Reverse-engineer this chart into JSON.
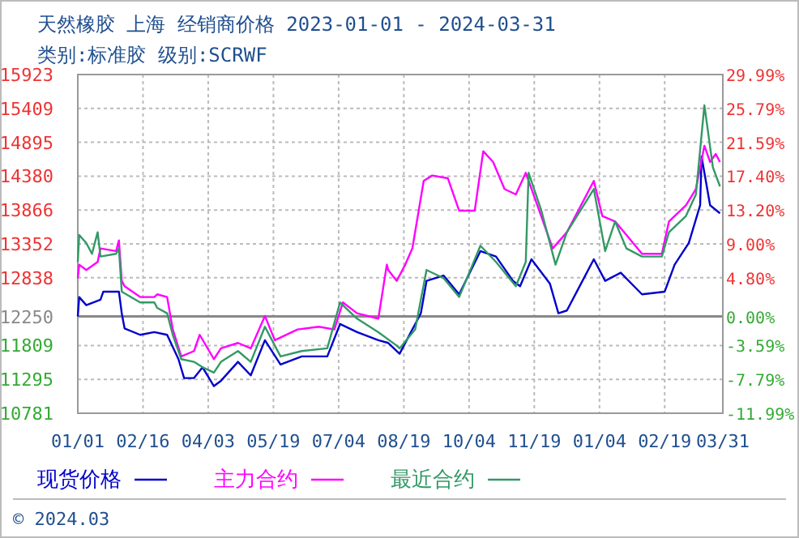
{
  "chart_data": {
    "type": "line",
    "title": "天然橡胶 上海 经销商价格 2023-01-01 - 2024-03-31",
    "subtitle": "类别:标准胶 级别:SCRWF",
    "xlim": [
      "2023-01-01",
      "2024-03-31"
    ],
    "xticks": [
      {
        "value": "2023-01-01",
        "label": "01/01"
      },
      {
        "value": "2023-02-16",
        "label": "02/16"
      },
      {
        "value": "2023-04-03",
        "label": "04/03"
      },
      {
        "value": "2023-05-19",
        "label": "05/19"
      },
      {
        "value": "2023-07-04",
        "label": "07/04"
      },
      {
        "value": "2023-08-19",
        "label": "08/19"
      },
      {
        "value": "2023-10-04",
        "label": "10/04"
      },
      {
        "value": "2023-11-19",
        "label": "11/19"
      },
      {
        "value": "2024-01-04",
        "label": "01/04"
      },
      {
        "value": "2024-02-19",
        "label": "02/19"
      },
      {
        "value": "2024-03-31",
        "label": "03/31"
      }
    ],
    "ylim": [
      10781,
      15923
    ],
    "yticks": [
      10781,
      11295,
      11809,
      12250,
      12838,
      13352,
      13866,
      14380,
      14895,
      15409,
      15923
    ],
    "y2lim": [
      -11.99,
      29.99
    ],
    "y2ticks": [
      {
        "value": -11.99,
        "label": "-11.99%"
      },
      {
        "value": -7.79,
        "label": "-7.79%"
      },
      {
        "value": -3.59,
        "label": "-3.59%"
      },
      {
        "value": 0,
        "label": "0.00%"
      },
      {
        "value": 4.8,
        "label": "4.80%"
      },
      {
        "value": 9.0,
        "label": "9.00%"
      },
      {
        "value": 13.2,
        "label": "13.20%"
      },
      {
        "value": 17.4,
        "label": "17.40%"
      },
      {
        "value": 21.59,
        "label": "21.59%"
      },
      {
        "value": 25.79,
        "label": "25.79%"
      },
      {
        "value": 29.99,
        "label": "29.99%"
      }
    ],
    "grid": true,
    "legend": "bottom",
    "ref_lines": [
      {
        "axis": "y",
        "value": 12250,
        "color": "#888888"
      }
    ],
    "annotations": [
      "© 2024.03"
    ],
    "series": [
      {
        "name": "现货价格",
        "color": "#0000cc",
        "x": [
          "2023-01-01",
          "2023-01-02",
          "2023-01-07",
          "2023-01-17",
          "2023-01-19",
          "2023-01-30",
          "2023-02-01",
          "2023-02-03",
          "2023-02-14",
          "2023-02-24",
          "2023-03-05",
          "2023-03-13",
          "2023-03-17",
          "2023-03-24",
          "2023-03-30",
          "2023-04-07",
          "2023-04-12",
          "2023-04-24",
          "2023-05-03",
          "2023-05-13",
          "2023-05-24",
          "2023-06-08",
          "2023-06-26",
          "2023-07-05",
          "2023-07-17",
          "2023-08-01",
          "2023-08-08",
          "2023-08-16",
          "2023-08-31",
          "2023-09-04",
          "2023-09-16",
          "2023-09-27",
          "2023-10-12",
          "2023-10-23",
          "2023-11-04",
          "2023-11-09",
          "2023-11-17",
          "2023-11-30",
          "2023-12-06",
          "2023-12-12",
          "2023-12-20",
          "2023-12-31",
          "2024-01-08",
          "2024-01-19",
          "2024-02-03",
          "2024-02-19",
          "2024-02-26",
          "2024-03-07",
          "2024-03-15",
          "2024-03-16",
          "2024-03-22",
          "2024-03-29"
        ],
        "values": [
          12250,
          12545,
          12422,
          12504,
          12627,
          12627,
          12299,
          12069,
          11971,
          12012,
          11971,
          11602,
          11315,
          11315,
          11479,
          11192,
          11274,
          11561,
          11356,
          11889,
          11520,
          11643,
          11643,
          12135,
          12012,
          11889,
          11848,
          11684,
          12299,
          12790,
          12872,
          12586,
          13242,
          13160,
          12790,
          12709,
          13119,
          12750,
          12299,
          12340,
          12668,
          13119,
          12790,
          12914,
          12586,
          12627,
          13037,
          13365,
          13939,
          14677,
          13939,
          13816
        ]
      },
      {
        "name": "主力合约",
        "color": "#ff00ff",
        "x": [
          "2023-01-01",
          "2023-01-02",
          "2023-01-07",
          "2023-01-15",
          "2023-01-17",
          "2023-01-28",
          "2023-01-30",
          "2023-02-01",
          "2023-02-03",
          "2023-02-14",
          "2023-02-24",
          "2023-02-26",
          "2023-03-05",
          "2023-03-09",
          "2023-03-15",
          "2023-03-24",
          "2023-03-28",
          "2023-04-07",
          "2023-04-12",
          "2023-04-24",
          "2023-05-03",
          "2023-05-13",
          "2023-05-20",
          "2023-06-05",
          "2023-06-20",
          "2023-07-01",
          "2023-07-07",
          "2023-07-17",
          "2023-08-01",
          "2023-08-07",
          "2023-08-08",
          "2023-08-14",
          "2023-08-20",
          "2023-08-25",
          "2023-09-02",
          "2023-09-08",
          "2023-09-19",
          "2023-09-27",
          "2023-10-08",
          "2023-10-14",
          "2023-10-21",
          "2023-10-29",
          "2023-11-06",
          "2023-11-13",
          "2023-12-02",
          "2023-12-12",
          "2023-12-31",
          "2024-01-06",
          "2024-01-15",
          "2024-01-23",
          "2024-02-03",
          "2024-02-17",
          "2024-02-22",
          "2024-03-05",
          "2024-03-12",
          "2024-03-18",
          "2024-03-22",
          "2024-03-26",
          "2024-03-29"
        ],
        "values": [
          12832,
          13037,
          12955,
          13078,
          13283,
          13242,
          13406,
          12790,
          12709,
          12545,
          12545,
          12586,
          12545,
          12053,
          11643,
          11725,
          11971,
          11602,
          11766,
          11848,
          11766,
          12258,
          11889,
          12053,
          12094,
          12053,
          12463,
          12299,
          12217,
          13037,
          12955,
          12790,
          13037,
          13283,
          14308,
          14390,
          14349,
          13857,
          13857,
          14759,
          14595,
          14185,
          14103,
          14431,
          13283,
          13529,
          14308,
          13775,
          13693,
          13488,
          13201,
          13201,
          13693,
          13939,
          14185,
          14841,
          14595,
          14718,
          14595
        ]
      },
      {
        "name": "最近合约",
        "color": "#339966",
        "x": [
          "2023-01-01",
          "2023-01-02",
          "2023-01-07",
          "2023-01-11",
          "2023-01-15",
          "2023-01-17",
          "2023-01-28",
          "2023-01-30",
          "2023-02-01",
          "2023-02-14",
          "2023-02-24",
          "2023-02-26",
          "2023-03-05",
          "2023-03-09",
          "2023-03-15",
          "2023-03-24",
          "2023-03-30",
          "2023-04-07",
          "2023-04-12",
          "2023-04-24",
          "2023-05-03",
          "2023-05-13",
          "2023-05-24",
          "2023-06-08",
          "2023-06-26",
          "2023-07-05",
          "2023-07-17",
          "2023-08-01",
          "2023-08-14",
          "2023-08-16",
          "2023-08-27",
          "2023-09-04",
          "2023-09-16",
          "2023-09-27",
          "2023-10-12",
          "2023-10-23",
          "2023-11-06",
          "2023-11-13",
          "2023-11-15",
          "2023-11-24",
          "2023-12-04",
          "2023-12-12",
          "2023-12-31",
          "2024-01-08",
          "2024-01-15",
          "2024-01-23",
          "2024-02-03",
          "2024-02-17",
          "2024-02-22",
          "2024-03-05",
          "2024-03-12",
          "2024-03-18",
          "2024-03-24",
          "2024-03-29"
        ],
        "values": [
          13078,
          13488,
          13365,
          13201,
          13529,
          13160,
          13201,
          13283,
          12627,
          12463,
          12463,
          12381,
          12299,
          11971,
          11602,
          11561,
          11479,
          11397,
          11561,
          11725,
          11561,
          12094,
          11643,
          11725,
          11766,
          12463,
          12217,
          12012,
          11807,
          11766,
          12053,
          12955,
          12832,
          12545,
          13324,
          13078,
          12709,
          13078,
          14431,
          13857,
          13037,
          13529,
          14185,
          13242,
          13693,
          13283,
          13160,
          13160,
          13529,
          13775,
          14103,
          15456,
          14513,
          14226
        ]
      }
    ]
  }
}
